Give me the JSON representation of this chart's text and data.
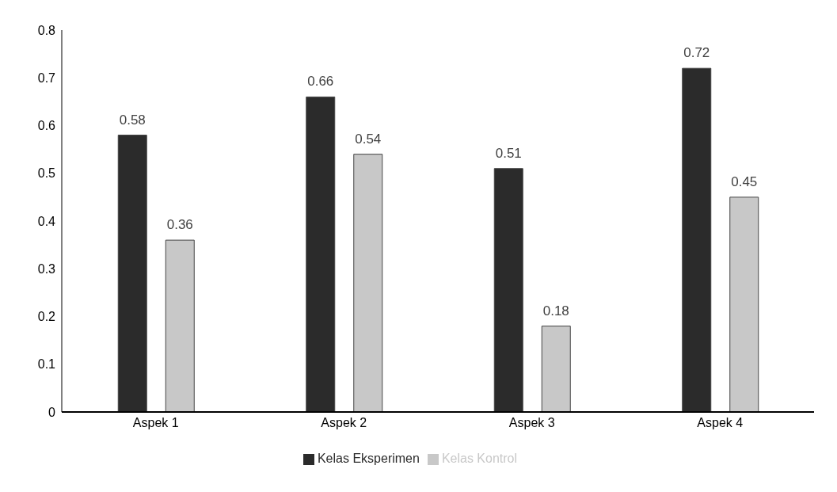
{
  "chart_data": {
    "type": "bar",
    "categories": [
      "Aspek 1",
      "Aspek 2",
      "Aspek 3",
      "Aspek 4"
    ],
    "series": [
      {
        "name": "Kelas Eksperimen",
        "color": "#2b2b2b",
        "values": [
          0.58,
          0.66,
          0.51,
          0.72
        ]
      },
      {
        "name": "Kelas Kontrol",
        "color": "#c8c8c8",
        "values": [
          0.36,
          0.54,
          0.18,
          0.45
        ]
      }
    ],
    "ylim": [
      0,
      0.8
    ],
    "yticks": [
      0,
      0.1,
      0.2,
      0.3,
      0.4,
      0.5,
      0.6,
      0.7,
      0.8
    ],
    "grid": false,
    "legend": "bottom",
    "data_labels": true
  }
}
